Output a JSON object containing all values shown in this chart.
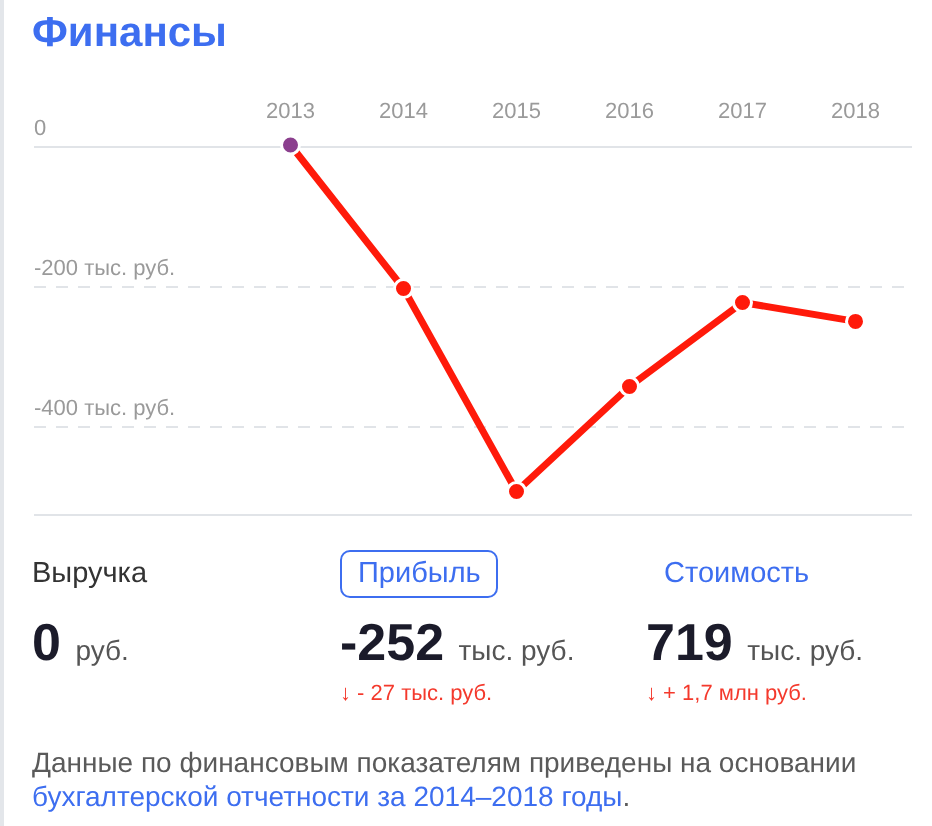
{
  "chart_data": [
    {
      "type": "line",
      "title": "Финансы",
      "categories": [
        "2013",
        "2014",
        "2015",
        "2016",
        "2017",
        "2018"
      ],
      "series": [
        {
          "color": "#ff1a0a",
          "colors": [
            "#8b3f8e",
            "#ff1a0a",
            "#ff1a0a",
            "#ff1a0a",
            "#ff1a0a",
            "#ff1a0a"
          ],
          "values": [
            0,
            -205,
            -495,
            -345,
            -225,
            -252
          ]
        }
      ],
      "ylim": [
        -530,
        0
      ],
      "yticks": [
        0,
        {
          "value": -200,
          "label": "-200 тыс. руб."
        },
        {
          "value": -400,
          "label": "-400 тыс. руб."
        }
      ],
      "grid": "y",
      "marker": "circle"
    },
    {
      "type": "other",
      "categories": [
        "Выручка",
        "Прибыль",
        "Стоимость"
      ],
      "value_labels": [
        "0 руб.",
        "-252 тыс. руб.",
        "719 тыс. руб."
      ],
      "annotations": [
        {
          "text": "↓ - 27 тыс. руб.",
          "x": "Прибыль"
        },
        {
          "text": "↓ + 1,7 млн руб.",
          "x": "Стоимость"
        },
        "Данные по финансовым показателям приведены на основании",
        "бухгалтерской отчетности за 2014–2018 годы",
        "."
      ]
    }
  ]
}
